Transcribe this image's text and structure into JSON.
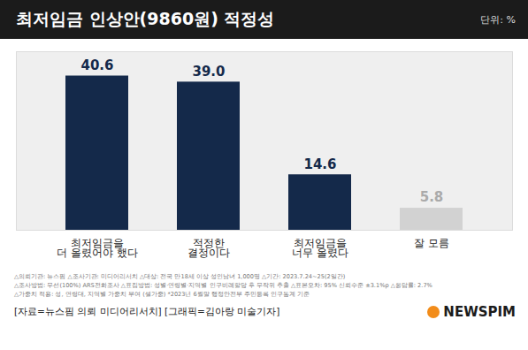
{
  "chart_data": {
    "type": "bar",
    "title": "최저임금 인상안(9860원) 적정성",
    "subtitle": "단위: %",
    "categories": [
      "최저임금을\n더 올렸어야 했다",
      "적정한\n결정이다",
      "최저임금을\n너무 올렸다",
      "잘 모름"
    ],
    "values": [
      40.6,
      39.0,
      14.6,
      5.8
    ],
    "value_labels": [
      "40.6",
      "39.0",
      "14.6",
      "5.8"
    ],
    "colors": [
      "#14294a",
      "#14294a",
      "#14294a",
      "#d2d2d2"
    ],
    "ylim": [
      0,
      47
    ],
    "yticks": [],
    "grid": false,
    "data_labels": true,
    "tick_labels": "x",
    "annotations": [
      "△의뢰기관: 뉴스핌  △조사기관: 미디어리서치  △대상: 전국 만18세 이상 성인남녀 1,000명  △기간: 2023.7.24~25(2일간)",
      "△조사방법: 무선(100%) ARS전화조사  △표집방법: 성별·연령별·지역별 인구비례할당 후 무작위 추출  △표본오차: 95% 신뢰수준 ±3.1%p  △응답률: 2.7%",
      "△가중치 적용: 성, 연령대, 지역별 가중치 부여 (셀가중) *2023년 6월말 행정안전부 주민등록 인구통계 기준"
    ],
    "source": "[자료=뉴스핌 의뢰 미디어리서치] [그래픽=김아랑 미술기자]",
    "logo": "NEWSPIM"
  }
}
